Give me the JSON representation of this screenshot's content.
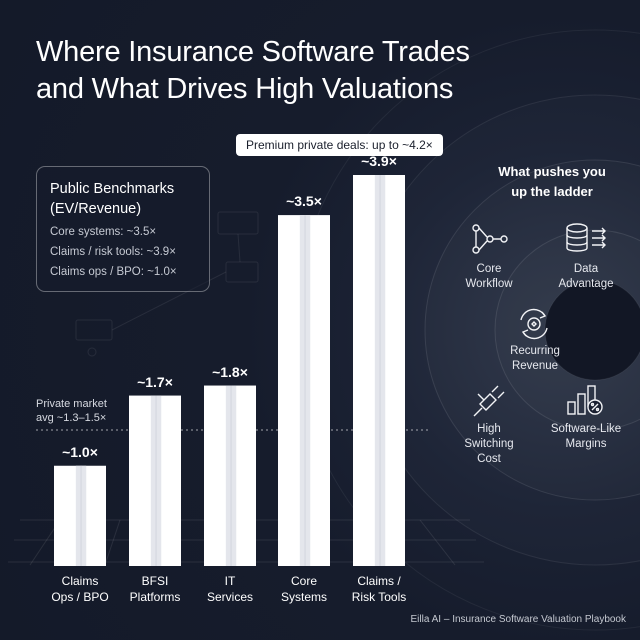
{
  "title": {
    "line1": "Where Insurance Software Trades",
    "line2": "and What Drives High Valuations"
  },
  "benchmarks": {
    "heading_line1": "Public Benchmarks",
    "heading_line2": "(EV/Revenue)",
    "rows": [
      "Core systems: ~3.5×",
      "Claims / risk tools: ~3.9×",
      "Claims ops / BPO: ~1.0×"
    ]
  },
  "chart_data": {
    "type": "bar",
    "categories": [
      {
        "line1": "Claims",
        "line2": "Ops / BPO"
      },
      {
        "line1": "BFSI",
        "line2": "Platforms"
      },
      {
        "line1": "IT",
        "line2": "Services"
      },
      {
        "line1": "Core",
        "line2": "Systems"
      },
      {
        "line1": "Claims /",
        "line2": "Risk Tools"
      }
    ],
    "values": [
      1.0,
      1.7,
      1.8,
      3.5,
      3.9
    ],
    "value_labels": [
      "~1.0×",
      "~1.7×",
      "~1.8×",
      "~3.5×",
      "~3.9×"
    ],
    "ylim": [
      0,
      4.2
    ],
    "reference_line": {
      "value": 1.3,
      "label_line1": "Private market",
      "label_line2": "avg ~1.3–1.5×"
    },
    "premium_note": "Premium private deals: up to ~4.2×",
    "title": "",
    "xlabel": "",
    "ylabel": "",
    "grid": false,
    "colors": {
      "bar": "#ffffff",
      "bar_shade": "#e4e6ec"
    }
  },
  "drivers": {
    "heading_line1": "What pushes you",
    "heading_line2": "up the ladder",
    "items": [
      {
        "icon": "workflow-icon",
        "line1": "Core",
        "line2": "Workflow"
      },
      {
        "icon": "database-icon",
        "line1": "Data",
        "line2": "Advantage"
      },
      {
        "icon": "recurring-revenue-icon",
        "line1": "Recurring",
        "line2": "Revenue"
      },
      {
        "icon": "plug-icon",
        "line1": "High",
        "line2": "Switching",
        "line3": "Cost"
      },
      {
        "icon": "margin-chart-icon",
        "line1": "Software-Like",
        "line2": "Margins"
      }
    ]
  },
  "footer": "Eilla AI – Insurance Software Valuation Playbook"
}
